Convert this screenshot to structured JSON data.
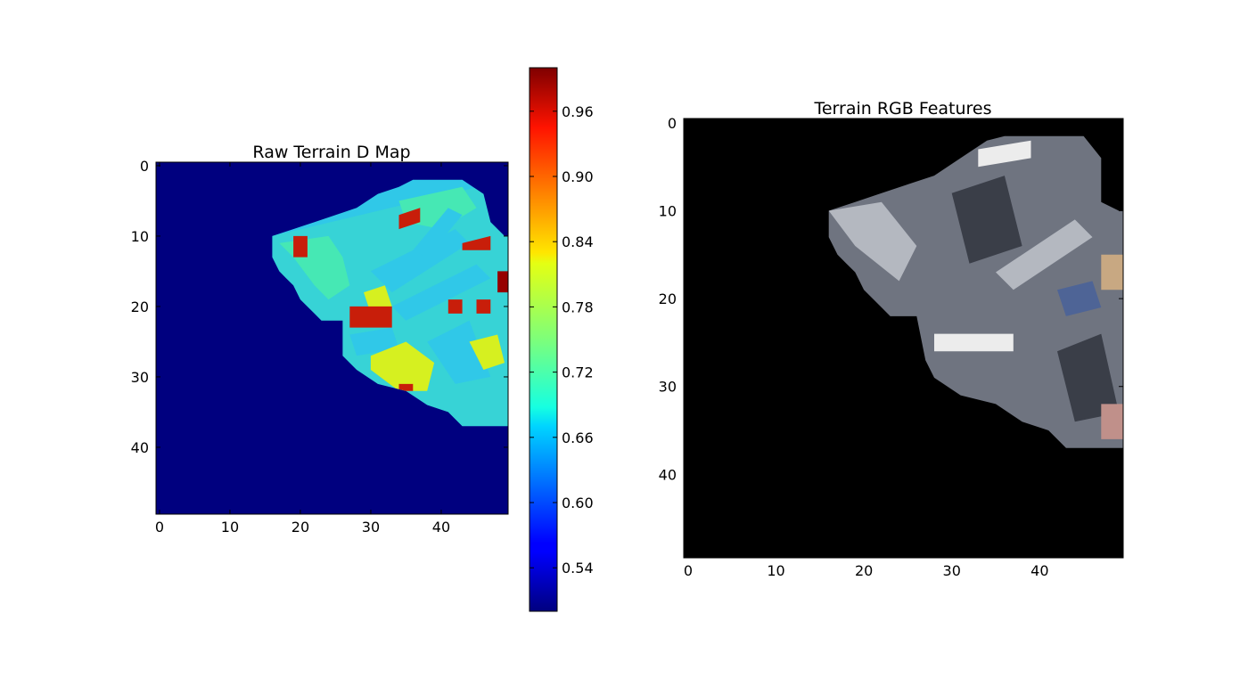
{
  "chart_data": [
    {
      "type": "heatmap",
      "title": "Raw Terrain D Map",
      "xlabel": "",
      "ylabel": "",
      "grid_size": [
        50,
        50
      ],
      "xlim": [
        -0.5,
        49.5
      ],
      "ylim": [
        49.5,
        -0.5
      ],
      "xticks": [
        0,
        10,
        20,
        30,
        40
      ],
      "yticks": [
        0,
        10,
        20,
        30,
        40
      ],
      "background_value": 0.5,
      "colormap": "jet",
      "colors": {
        "background": "#00007f",
        "cyan": "#30c8e8",
        "green": "#46e8b4",
        "yellow": "#d6f020",
        "red": "#c81e0a",
        "darkred": "#960000"
      },
      "region_outline": [
        [
          16,
          10
        ],
        [
          19,
          9
        ],
        [
          22,
          8
        ],
        [
          25,
          7
        ],
        [
          28,
          6
        ],
        [
          31,
          4
        ],
        [
          34,
          3
        ],
        [
          36,
          2
        ],
        [
          43,
          2
        ],
        [
          46,
          4
        ],
        [
          47,
          8
        ],
        [
          49,
          10
        ],
        [
          49.5,
          10
        ],
        [
          49.5,
          37
        ],
        [
          43,
          37
        ],
        [
          41,
          35
        ],
        [
          38,
          34
        ],
        [
          35,
          32
        ],
        [
          31,
          31
        ],
        [
          28,
          29
        ],
        [
          26,
          27
        ],
        [
          26,
          22
        ],
        [
          23,
          22
        ],
        [
          22,
          21
        ],
        [
          20,
          19
        ],
        [
          19,
          17
        ],
        [
          18,
          16
        ],
        [
          17,
          15
        ],
        [
          16,
          13
        ]
      ],
      "features": [
        {
          "color": "green",
          "poly": [
            [
              17,
              11
            ],
            [
              24,
              10
            ],
            [
              26,
              13
            ],
            [
              27,
              17
            ],
            [
              24,
              19
            ],
            [
              22,
              17
            ],
            [
              19,
              13
            ]
          ]
        },
        {
          "color": "green",
          "poly": [
            [
              34,
              5
            ],
            [
              43,
              3
            ],
            [
              45,
              6
            ],
            [
              40,
              9
            ],
            [
              35,
              8
            ]
          ]
        },
        {
          "color": "cyan",
          "poly": [
            [
              30,
              15
            ],
            [
              42,
              9
            ],
            [
              44,
              11
            ],
            [
              33,
              18
            ]
          ]
        },
        {
          "color": "cyan",
          "poly": [
            [
              33,
              20
            ],
            [
              45,
              14
            ],
            [
              47,
              16
            ],
            [
              35,
              22
            ]
          ]
        },
        {
          "color": "cyan",
          "poly": [
            [
              38,
              25
            ],
            [
              44,
              22
            ],
            [
              47,
              30
            ],
            [
              42,
              31
            ]
          ]
        },
        {
          "color": "cyan",
          "poly": [
            [
              27,
              24
            ],
            [
              33,
              23
            ],
            [
              34,
              26
            ],
            [
              28,
              27
            ]
          ]
        },
        {
          "color": "cyan",
          "poly": [
            [
              36,
              12
            ],
            [
              41,
              6
            ],
            [
              43,
              7
            ],
            [
              38,
              13
            ]
          ]
        },
        {
          "color": "yellow",
          "poly": [
            [
              30,
              27
            ],
            [
              35,
              25
            ],
            [
              39,
              28
            ],
            [
              38,
              32
            ],
            [
              34,
              32
            ],
            [
              30,
              29
            ]
          ]
        },
        {
          "color": "yellow",
          "poly": [
            [
              29,
              18
            ],
            [
              32,
              17
            ],
            [
              33,
              20
            ],
            [
              30,
              21
            ]
          ]
        },
        {
          "color": "yellow",
          "poly": [
            [
              44,
              25
            ],
            [
              48,
              24
            ],
            [
              49,
              28
            ],
            [
              46,
              29
            ]
          ]
        },
        {
          "color": "red",
          "poly": [
            [
              27,
              20
            ],
            [
              33,
              20
            ],
            [
              33,
              23
            ],
            [
              27,
              23
            ]
          ]
        },
        {
          "color": "red",
          "poly": [
            [
              34,
              7
            ],
            [
              37,
              6
            ],
            [
              37,
              8
            ],
            [
              34,
              9
            ]
          ]
        },
        {
          "color": "red",
          "poly": [
            [
              43,
              11
            ],
            [
              47,
              10
            ],
            [
              47,
              12
            ],
            [
              43,
              12
            ]
          ]
        },
        {
          "color": "red",
          "poly": [
            [
              19,
              10
            ],
            [
              21,
              10
            ],
            [
              21,
              13
            ],
            [
              19,
              13
            ]
          ]
        },
        {
          "color": "red",
          "poly": [
            [
              41,
              19
            ],
            [
              43,
              19
            ],
            [
              43,
              21
            ],
            [
              41,
              21
            ]
          ]
        },
        {
          "color": "red",
          "poly": [
            [
              45,
              19
            ],
            [
              47,
              19
            ],
            [
              47,
              21
            ],
            [
              45,
              21
            ]
          ]
        },
        {
          "color": "red",
          "poly": [
            [
              34,
              31
            ],
            [
              36,
              31
            ],
            [
              36,
              32
            ],
            [
              34,
              32
            ]
          ]
        },
        {
          "color": "darkred",
          "poly": [
            [
              48,
              15
            ],
            [
              49.5,
              15
            ],
            [
              49.5,
              18
            ],
            [
              48,
              18
            ]
          ]
        }
      ],
      "colorbar": {
        "range": [
          0.5,
          1.0
        ],
        "ticks": [
          0.54,
          0.6,
          0.66,
          0.72,
          0.78,
          0.84,
          0.9,
          0.96
        ],
        "tick_labels": [
          "0.54",
          "0.60",
          "0.66",
          "0.72",
          "0.78",
          "0.84",
          "0.90",
          "0.96"
        ]
      }
    },
    {
      "type": "heatmap",
      "title": "Terrain RGB Features",
      "xlabel": "",
      "ylabel": "",
      "grid_size": [
        50,
        50
      ],
      "xlim": [
        -0.5,
        49.5
      ],
      "ylim": [
        49.5,
        -0.5
      ],
      "xticks": [
        0,
        10,
        20,
        30,
        40
      ],
      "yticks": [
        0,
        10,
        20,
        30,
        40
      ],
      "colors": {
        "background": "#000000",
        "base": "#6f7480",
        "light": "#b4b8c0",
        "dark": "#3a3e48",
        "white": "#ececec",
        "tan": "#c8a882",
        "blue": "#4e6496",
        "pink": "#c0908a"
      },
      "region_outline": [
        [
          16,
          10
        ],
        [
          19,
          9
        ],
        [
          22,
          8
        ],
        [
          25,
          7
        ],
        [
          28,
          6
        ],
        [
          31,
          4
        ],
        [
          34,
          2
        ],
        [
          36,
          1.5
        ],
        [
          45,
          1.5
        ],
        [
          47,
          4
        ],
        [
          47,
          9
        ],
        [
          49,
          10
        ],
        [
          49.5,
          10
        ],
        [
          49.5,
          37
        ],
        [
          43,
          37
        ],
        [
          41,
          35
        ],
        [
          38,
          34
        ],
        [
          35,
          32
        ],
        [
          31,
          31
        ],
        [
          28,
          29
        ],
        [
          27,
          27
        ],
        [
          26,
          22
        ],
        [
          23,
          22
        ],
        [
          22,
          21
        ],
        [
          20,
          19
        ],
        [
          19,
          17
        ],
        [
          18,
          16
        ],
        [
          17,
          15
        ],
        [
          16,
          13
        ]
      ],
      "features": [
        {
          "color": "light",
          "poly": [
            [
              16,
              10
            ],
            [
              22,
              9
            ],
            [
              26,
              14
            ],
            [
              24,
              18
            ],
            [
              19,
              14
            ]
          ]
        },
        {
          "color": "white",
          "poly": [
            [
              33,
              3
            ],
            [
              39,
              2
            ],
            [
              39,
              4
            ],
            [
              33,
              5
            ]
          ]
        },
        {
          "color": "white",
          "poly": [
            [
              28,
              24
            ],
            [
              37,
              24
            ],
            [
              37,
              26
            ],
            [
              28,
              26
            ]
          ]
        },
        {
          "color": "dark",
          "poly": [
            [
              30,
              8
            ],
            [
              36,
              6
            ],
            [
              38,
              14
            ],
            [
              32,
              16
            ]
          ]
        },
        {
          "color": "dark",
          "poly": [
            [
              42,
              26
            ],
            [
              47,
              24
            ],
            [
              49,
              33
            ],
            [
              44,
              34
            ]
          ]
        },
        {
          "color": "tan",
          "poly": [
            [
              47,
              15
            ],
            [
              49.5,
              15
            ],
            [
              49.5,
              19
            ],
            [
              47,
              19
            ]
          ]
        },
        {
          "color": "blue",
          "poly": [
            [
              42,
              19
            ],
            [
              46,
              18
            ],
            [
              47,
              21
            ],
            [
              43,
              22
            ]
          ]
        },
        {
          "color": "light",
          "poly": [
            [
              35,
              17
            ],
            [
              44,
              11
            ],
            [
              46,
              13
            ],
            [
              37,
              19
            ]
          ]
        },
        {
          "color": "pink",
          "poly": [
            [
              47,
              32
            ],
            [
              49.5,
              32
            ],
            [
              49.5,
              36
            ],
            [
              47,
              36
            ]
          ]
        }
      ]
    }
  ]
}
